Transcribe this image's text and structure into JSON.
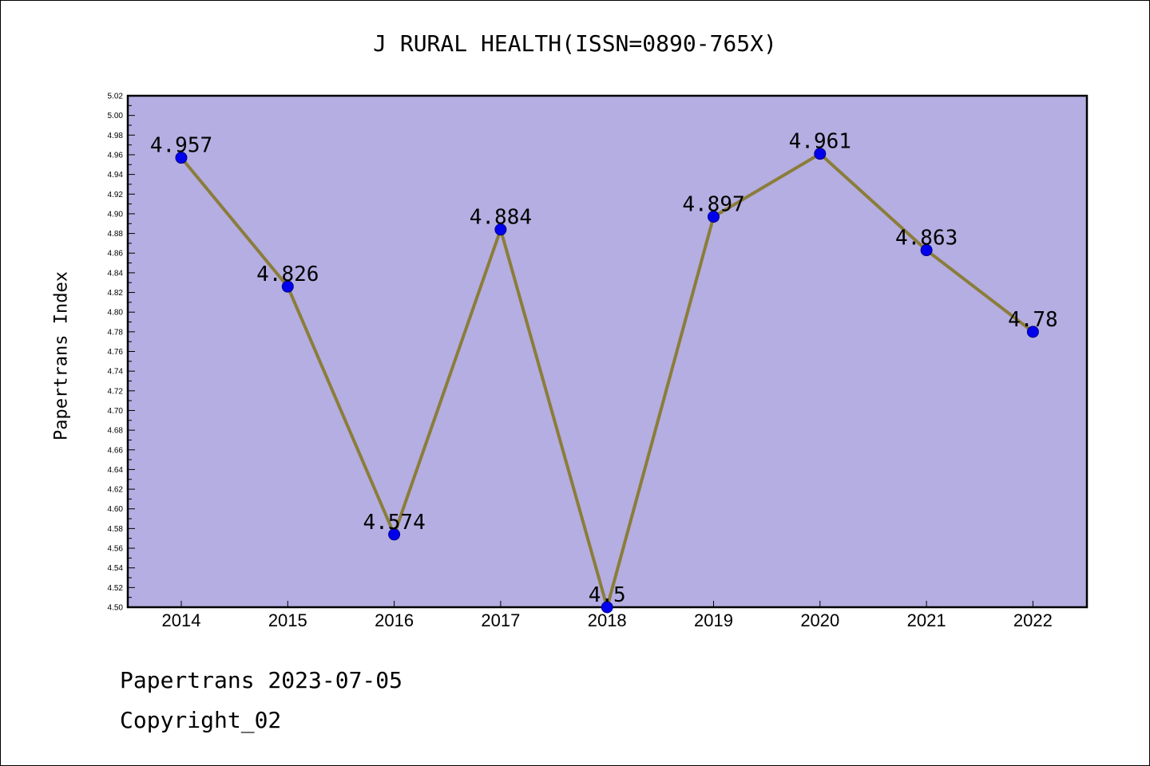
{
  "chart_data": {
    "type": "line",
    "title": "J RURAL HEALTH(ISSN=0890-765X)",
    "ylabel": "Papertrans Index",
    "xlabel": "",
    "categories": [
      "2014",
      "2015",
      "2016",
      "2017",
      "2018",
      "2019",
      "2020",
      "2021",
      "2022"
    ],
    "series": [
      {
        "values": [
          4.957,
          4.826,
          4.574,
          4.884,
          4.5,
          4.897,
          4.961,
          4.863,
          4.78
        ],
        "labels": [
          "4.957",
          "4.826",
          "4.574",
          "4.884",
          "4.5",
          "4.897",
          "4.961",
          "4.863",
          "4.78"
        ]
      }
    ],
    "ylim": [
      4.5,
      5.02
    ],
    "yticks": [
      "4.50",
      "4.52",
      "4.54",
      "4.56",
      "4.58",
      "4.60",
      "4.62",
      "4.64",
      "4.66",
      "4.68",
      "4.70",
      "4.72",
      "4.74",
      "4.76",
      "4.78",
      "4.80",
      "4.82",
      "4.84",
      "4.86",
      "4.88",
      "4.90",
      "4.92",
      "4.94",
      "4.96",
      "4.98",
      "5.00",
      "5.02"
    ],
    "grid": false,
    "colors": {
      "plot_bg": "#b4aee2",
      "line": "#8b7d3a",
      "marker": "#0000ee",
      "marker_edge": "#000080"
    }
  },
  "footer": {
    "line1": "Papertrans 2023-07-05",
    "line2": "Copyright_02"
  }
}
